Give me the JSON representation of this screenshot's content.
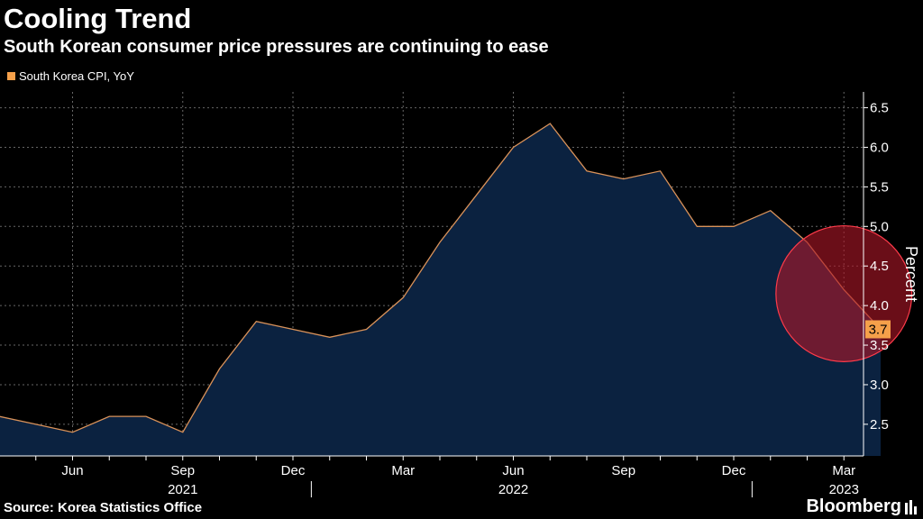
{
  "header": {
    "title": "Cooling Trend",
    "subtitle": "South Korean consumer price pressures are continuing to ease"
  },
  "footer": {
    "source": "Source: Korea Statistics Office",
    "brand": "Bloomberg"
  },
  "colors": {
    "background": "#000000",
    "area_fill": "#0b2240",
    "line": "#d9925a",
    "legend_swatch": "#f5a04a",
    "last_value_badge": "#f5a04a",
    "grid": "#666666",
    "highlight_circle": "#b01828",
    "highlight_circle_stroke": "#ff3b4a"
  },
  "icons": {
    "brand": "bloomberg-chart-icon"
  },
  "chart_data": {
    "type": "area",
    "title": "Cooling Trend",
    "subtitle": "South Korean consumer price pressures are continuing to ease",
    "ylabel": "Percent",
    "xlabel": "",
    "ylim": [
      2.1,
      6.7
    ],
    "yticks": [
      2.5,
      3.0,
      3.5,
      4.0,
      4.5,
      5.0,
      5.5,
      6.0,
      6.5
    ],
    "ytick_labels": [
      "2.5",
      "3.0",
      "3.5",
      "4.0",
      "4.5",
      "5.0",
      "5.5",
      "6.0",
      "6.5"
    ],
    "grid": true,
    "legend_position": "top-left",
    "series": [
      {
        "name": "South Korea CPI, YoY",
        "x": [
          "2021-04",
          "2021-05",
          "2021-06",
          "2021-07",
          "2021-08",
          "2021-09",
          "2021-10",
          "2021-11",
          "2021-12",
          "2022-01",
          "2022-02",
          "2022-03",
          "2022-04",
          "2022-05",
          "2022-06",
          "2022-07",
          "2022-08",
          "2022-09",
          "2022-10",
          "2022-11",
          "2022-12",
          "2023-01",
          "2023-02",
          "2023-03",
          "2023-04"
        ],
        "values": [
          2.6,
          2.5,
          2.4,
          2.6,
          2.6,
          2.4,
          3.2,
          3.8,
          3.7,
          3.6,
          3.7,
          4.1,
          4.8,
          5.4,
          6.0,
          6.3,
          5.7,
          5.6,
          5.7,
          5.0,
          5.0,
          5.2,
          4.8,
          4.2,
          3.7
        ]
      }
    ],
    "x_month_ticks": [
      {
        "x": "2021-06",
        "label": "Jun"
      },
      {
        "x": "2021-09",
        "label": "Sep"
      },
      {
        "x": "2021-12",
        "label": "Dec"
      },
      {
        "x": "2022-03",
        "label": "Mar"
      },
      {
        "x": "2022-06",
        "label": "Jun"
      },
      {
        "x": "2022-09",
        "label": "Sep"
      },
      {
        "x": "2022-12",
        "label": "Dec"
      },
      {
        "x": "2023-03",
        "label": "Mar"
      }
    ],
    "x_year_labels": [
      {
        "x": "2021-09",
        "label": "2021"
      },
      {
        "x": "2022-06",
        "label": "2022"
      },
      {
        "x": "2023-03",
        "label": "2023"
      }
    ],
    "year_dividers": [
      "2021-12",
      "2022-12"
    ],
    "last_value_label": "3.7",
    "annotation": {
      "type": "circle",
      "description": "highlight",
      "center_x": "2023-03",
      "center_y": 4.15,
      "radius_months": 1.85
    }
  }
}
